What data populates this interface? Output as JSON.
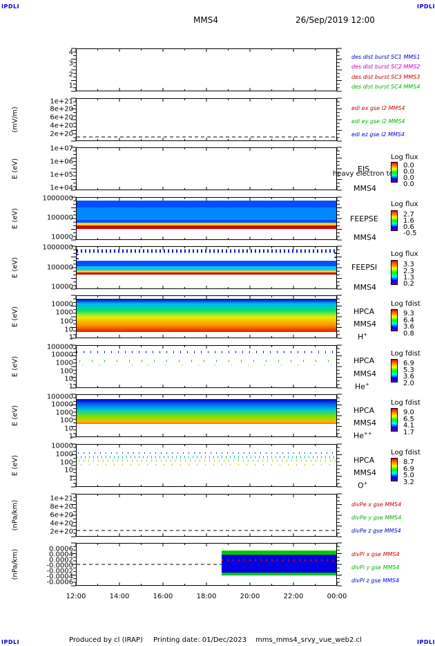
{
  "header": {
    "corner_label": "IPDLI",
    "spacecraft": "MMS4",
    "datetime": "26/Sep/2019 12:00"
  },
  "footer": {
    "producer": "Produced by cl (IRAP)",
    "printing_date": "Printing date: 01/Dec/2023",
    "script": "mms_mms4_srvy_vue_web2.cl"
  },
  "colors": {
    "sc1": "#0000c8",
    "sc2": "#c800c8",
    "sc3": "#c80000",
    "sc4": "#00b400",
    "x": "#c80000",
    "y": "#00b400",
    "z": "#0000c8"
  },
  "chart_data": {
    "type": "stacked time-series panels",
    "x_ticks": [
      "12:00",
      "14:00",
      "16:00",
      "18:00",
      "20:00",
      "22:00",
      "00:00"
    ],
    "panels": [
      {
        "id": "des",
        "type": "line",
        "ylabel": "",
        "yticks": [
          "4",
          "3",
          "2",
          "1"
        ],
        "legend": [
          "des dist burst SC1 MMS1",
          "des dist burst SC2 MMS2",
          "des dist burst SC3 MMS3",
          "des dist burst SC4 MMS4"
        ]
      },
      {
        "id": "edi",
        "type": "line",
        "ylabel": "(mV/m)",
        "yticks": [
          "1e+21",
          "8e+20",
          "6e+20",
          "4e+20",
          "2e+20",
          "0"
        ],
        "legend": [
          "edi ex gse l2 MMS4",
          "edi ey gse l2 MMS4",
          "edi ez gse l2 MMS4"
        ]
      },
      {
        "id": "eis",
        "type": "heatmap",
        "ylabel": "E (eV)",
        "yticks": [
          "1e+07",
          "1e+06",
          "1e+05",
          "1e+04"
        ],
        "instrument": [
          "EIS",
          "MMS4"
        ],
        "extra_label": "heavy electron to",
        "colorbar_title": "Log flux",
        "colorbar_values": [
          "0.0",
          "0.0",
          "0.0",
          "0.0"
        ]
      },
      {
        "id": "feepse",
        "type": "heatmap",
        "ylabel": "E (eV)",
        "yticks": [
          "1000000",
          "100000",
          "10000"
        ],
        "instrument": [
          "FEEPSE",
          "MMS4"
        ],
        "colorbar_title": "Log flux",
        "colorbar_values": [
          "2.7",
          "1.6",
          "0.6",
          "-0.5"
        ]
      },
      {
        "id": "feepsi",
        "type": "heatmap",
        "ylabel": "E (eV)",
        "yticks": [
          "1000000",
          "100000",
          "10000"
        ],
        "instrument": [
          "FEEPSI",
          "MMS4"
        ],
        "colorbar_title": "Log flux",
        "colorbar_values": [
          "3.3",
          "2.3",
          "1.3",
          "0.2"
        ]
      },
      {
        "id": "hpca_h",
        "type": "heatmap",
        "ylabel": "E (eV)",
        "yticks": [
          "10000",
          "1000",
          "100",
          "10",
          "1"
        ],
        "instrument": [
          "HPCA",
          "MMS4"
        ],
        "species": "H",
        "species_sup": "+",
        "colorbar_title": "Log fdist",
        "colorbar_values": [
          "9.3",
          "6.4",
          "3.6",
          "0.8"
        ]
      },
      {
        "id": "hpca_he",
        "type": "heatmap",
        "ylabel": "E (eV)",
        "yticks": [
          "100000",
          "10000",
          "1000",
          "100",
          "10",
          "1"
        ],
        "instrument": [
          "HPCA",
          "MMS4"
        ],
        "species": "He",
        "species_sup": "+",
        "colorbar_title": "Log fdist",
        "colorbar_values": [
          "6.9",
          "5.3",
          "3.6",
          "2.0"
        ]
      },
      {
        "id": "hpca_hepp",
        "type": "heatmap",
        "ylabel": "E (eV)",
        "yticks": [
          "100000",
          "10000",
          "1000",
          "100",
          "10",
          "1"
        ],
        "instrument": [
          "HPCA",
          "MMS4"
        ],
        "species": "He",
        "species_sup": "++",
        "colorbar_title": "Log fdist",
        "colorbar_values": [
          "9.0",
          "6.5",
          "4.1",
          "1.7"
        ]
      },
      {
        "id": "hpca_o",
        "type": "heatmap",
        "ylabel": "E (eV)",
        "yticks": [
          "10000",
          "1000",
          "100",
          "10",
          "1"
        ],
        "instrument": [
          "HPCA",
          "MMS4"
        ],
        "species": "O",
        "species_sup": "+",
        "colorbar_title": "Log fdist",
        "colorbar_values": [
          "8.7",
          "6.9",
          "5.0",
          "3.2"
        ]
      },
      {
        "id": "divpe",
        "type": "line",
        "ylabel": "(nPa/km)",
        "yticks": [
          "1e+21",
          "8e+20",
          "6e+20",
          "4e+20",
          "2e+20",
          "0"
        ],
        "legend": [
          "divPe x gse MMS4",
          "divPe y gse MMS4",
          "divPe z gse MMS4"
        ]
      },
      {
        "id": "divpi",
        "type": "line",
        "ylabel": "(nPa/km)",
        "yticks": [
          "0.0006",
          "0.0004",
          "0.0002",
          "-0.0000",
          "-0.0002",
          "-0.0004",
          "-0.0006"
        ],
        "legend": [
          "divPi x gse MMS4",
          "divPi y gse MMS4",
          "divPi z gse MMS4"
        ],
        "data_start": "18:40"
      }
    ]
  }
}
